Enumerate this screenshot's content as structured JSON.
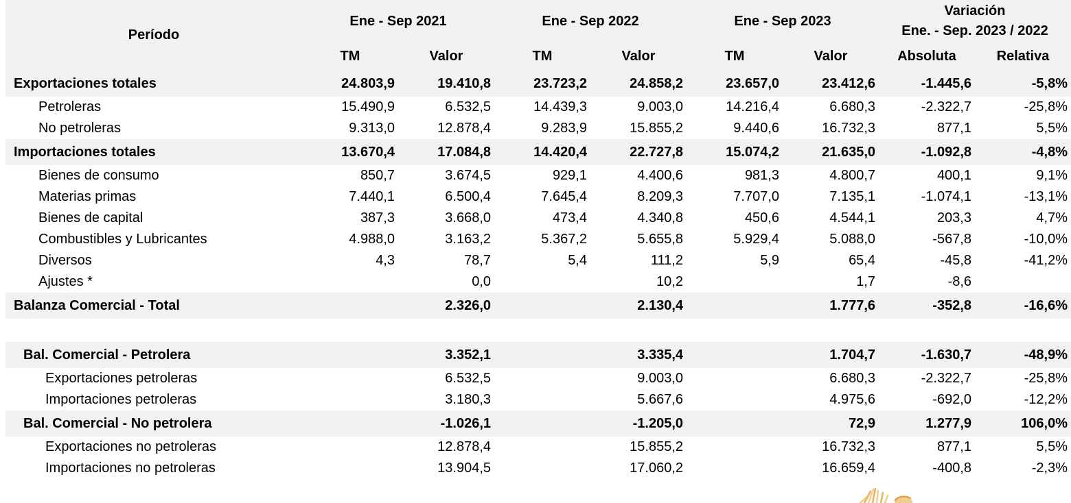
{
  "chart_data": {
    "type": "table",
    "header": {
      "period": "Período",
      "groups": [
        {
          "label": "Ene - Sep 2021"
        },
        {
          "label": "Ene - Sep 2022"
        },
        {
          "label": "Ene - Sep 2023"
        },
        {
          "label": "Variación",
          "sublabel": "Ene. - Sep. 2023 / 2022"
        }
      ],
      "subcolumns": [
        "TM",
        "Valor",
        "TM",
        "Valor",
        "TM",
        "Valor",
        "Absoluta",
        "Relativa"
      ]
    },
    "rows": [
      {
        "label": "Exportaciones totales",
        "style": "total",
        "indent": 0,
        "values": [
          "24.803,9",
          "19.410,8",
          "23.723,2",
          "24.858,2",
          "23.657,0",
          "23.412,6",
          "-1.445,6",
          "-5,8%"
        ]
      },
      {
        "label": "Petroleras",
        "style": "item",
        "indent": 1,
        "values": [
          "15.490,9",
          "6.532,5",
          "14.439,3",
          "9.003,0",
          "14.216,4",
          "6.680,3",
          "-2.322,7",
          "-25,8%"
        ]
      },
      {
        "label": "No petroleras",
        "style": "item",
        "indent": 1,
        "values": [
          "9.313,0",
          "12.878,4",
          "9.283,9",
          "15.855,2",
          "9.440,6",
          "16.732,3",
          "877,1",
          "5,5%"
        ]
      },
      {
        "label": "Importaciones totales",
        "style": "total",
        "indent": 0,
        "values": [
          "13.670,4",
          "17.084,8",
          "14.420,4",
          "22.727,8",
          "15.074,2",
          "21.635,0",
          "-1.092,8",
          "-4,8%"
        ]
      },
      {
        "label": "Bienes de consumo",
        "style": "item",
        "indent": 1,
        "values": [
          "850,7",
          "3.674,5",
          "929,1",
          "4.400,6",
          "981,3",
          "4.800,7",
          "400,1",
          "9,1%"
        ]
      },
      {
        "label": "Materias primas",
        "style": "item",
        "indent": 1,
        "values": [
          "7.440,1",
          "6.500,4",
          "7.645,4",
          "8.209,3",
          "7.707,0",
          "7.135,1",
          "-1.074,1",
          "-13,1%"
        ]
      },
      {
        "label": "Bienes de capital",
        "style": "item",
        "indent": 1,
        "values": [
          "387,3",
          "3.668,0",
          "473,4",
          "4.340,8",
          "450,6",
          "4.544,1",
          "203,3",
          "4,7%"
        ]
      },
      {
        "label": "Combustibles y Lubricantes",
        "style": "item",
        "indent": 1,
        "values": [
          "4.988,0",
          "3.163,2",
          "5.367,2",
          "5.655,8",
          "5.929,4",
          "5.088,0",
          "-567,8",
          "-10,0%"
        ]
      },
      {
        "label": "Diversos",
        "style": "item",
        "indent": 1,
        "values": [
          "4,3",
          "78,7",
          "5,4",
          "111,2",
          "5,9",
          "65,4",
          "-45,8",
          "-41,2%"
        ]
      },
      {
        "label": "Ajustes *",
        "style": "item",
        "indent": 1,
        "values": [
          "",
          "0,0",
          "",
          "10,2",
          "",
          "1,7",
          "-8,6",
          ""
        ]
      },
      {
        "label": "Balanza Comercial - Total",
        "style": "total",
        "indent": 0,
        "values": [
          "",
          "2.326,0",
          "",
          "2.130,4",
          "",
          "1.777,6",
          "-352,8",
          "-16,6%"
        ]
      },
      {
        "label": "",
        "style": "spacer",
        "indent": 0,
        "values": []
      },
      {
        "label": "Bal. Comercial - Petrolera",
        "style": "total",
        "indent": 2,
        "values": [
          "",
          "3.352,1",
          "",
          "3.335,4",
          "",
          "1.704,7",
          "-1.630,7",
          "-48,9%"
        ]
      },
      {
        "label": "Exportaciones petroleras",
        "style": "item",
        "indent": 3,
        "values": [
          "",
          "6.532,5",
          "",
          "9.003,0",
          "",
          "6.680,3",
          "-2.322,7",
          "-25,8%"
        ]
      },
      {
        "label": "Importaciones petroleras",
        "style": "item",
        "indent": 3,
        "values": [
          "",
          "3.180,3",
          "",
          "5.667,6",
          "",
          "4.975,6",
          "-692,0",
          "-12,2%"
        ]
      },
      {
        "label": "Bal. Comercial - No petrolera",
        "style": "total",
        "indent": 2,
        "values": [
          "",
          "-1.026,1",
          "",
          "-1.205,0",
          "",
          "72,9",
          "1.277,9",
          "106,0%"
        ]
      },
      {
        "label": "Exportaciones no petroleras",
        "style": "item",
        "indent": 3,
        "values": [
          "",
          "12.878,4",
          "",
          "15.855,2",
          "",
          "16.732,3",
          "877,1",
          "5,5%"
        ]
      },
      {
        "label": "Importaciones no petroleras",
        "style": "item",
        "indent": 3,
        "values": [
          "",
          "13.904,5",
          "",
          "17.060,2",
          "",
          "16.659,4",
          "-400,8",
          "-2,3%"
        ]
      }
    ],
    "layout": {
      "band_color": "#f1f1f1",
      "background_color": "#ffffff",
      "text_color": "#000000"
    }
  },
  "watermark": {
    "description": "partial-gold-logo",
    "gold_light": "#f2d093",
    "gold": "#e8b561",
    "gold_dark": "#dca14d"
  }
}
